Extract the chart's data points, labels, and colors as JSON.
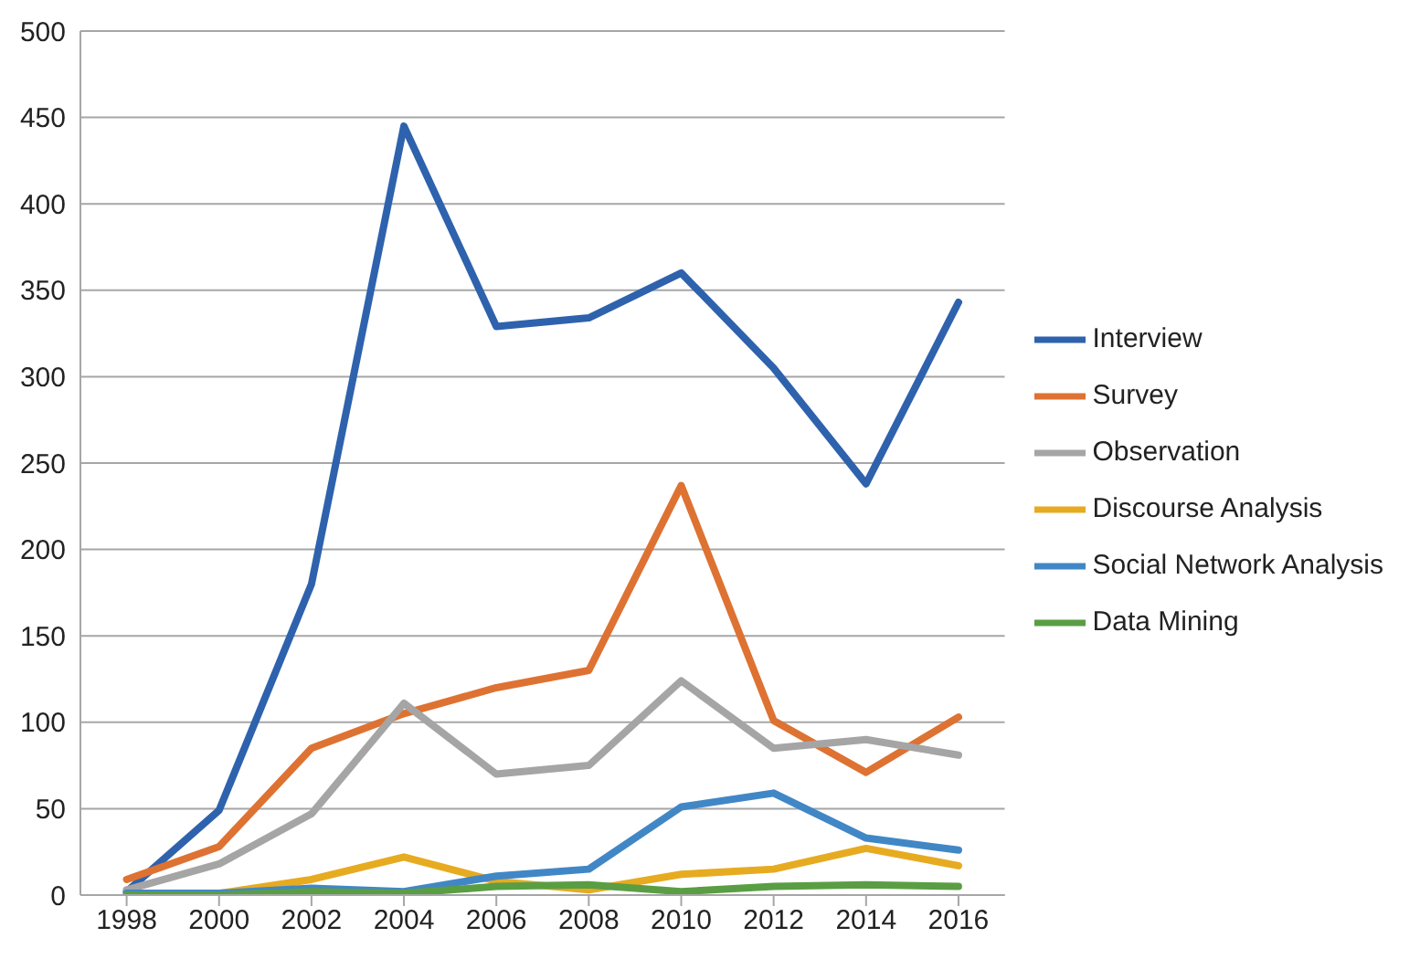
{
  "chart_data": {
    "type": "line",
    "categories": [
      "1998",
      "2000",
      "2002",
      "2004",
      "2006",
      "2008",
      "2010",
      "2012",
      "2014",
      "2016"
    ],
    "series": [
      {
        "name": "Interview",
        "color": "#2e62ad",
        "values": [
          2,
          49,
          180,
          445,
          329,
          334,
          360,
          305,
          238,
          343
        ]
      },
      {
        "name": "Survey",
        "color": "#de7232",
        "values": [
          9,
          28,
          85,
          105,
          120,
          130,
          237,
          101,
          71,
          103
        ]
      },
      {
        "name": "Observation",
        "color": "#a5a5a5",
        "values": [
          3,
          18,
          47,
          111,
          70,
          75,
          124,
          85,
          90,
          81
        ]
      },
      {
        "name": "Discourse Analysis",
        "color": "#e6ab20",
        "values": [
          0,
          1,
          9,
          22,
          8,
          3,
          12,
          15,
          27,
          17
        ]
      },
      {
        "name": "Social Network Analysis",
        "color": "#4187c6",
        "values": [
          1,
          1,
          4,
          2,
          11,
          15,
          51,
          59,
          33,
          26
        ]
      },
      {
        "name": "Data Mining",
        "color": "#5a9e44",
        "values": [
          0,
          0,
          2,
          1,
          5,
          6,
          2,
          5,
          6,
          5
        ]
      }
    ],
    "ylim": [
      0,
      500
    ],
    "yticks": [
      0,
      50,
      100,
      150,
      200,
      250,
      300,
      350,
      400,
      450,
      500
    ],
    "grid": "y",
    "legend": "right",
    "marker": "none",
    "line_style": "solid"
  }
}
